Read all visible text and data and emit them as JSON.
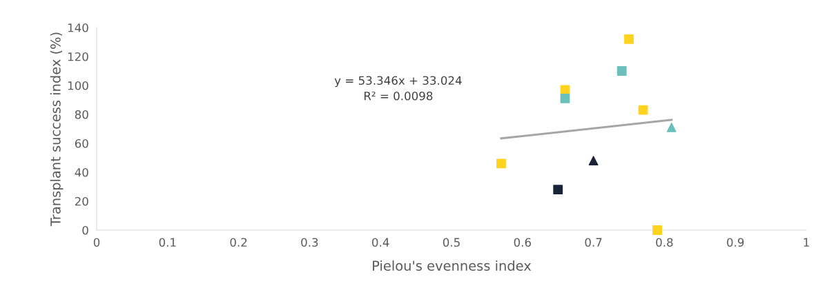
{
  "chart_data": {
    "type": "scatter",
    "xlabel": "Pielou's evenness index",
    "ylabel": "Transplant success index (%)",
    "xlim": [
      0,
      1
    ],
    "xticks": [
      0,
      {
        "value": 0.1,
        "label": "0.1"
      },
      {
        "value": 0.2,
        "label": "0.2"
      },
      {
        "value": 0.3,
        "label": "0.3"
      },
      {
        "value": 0.4,
        "label": "0.4"
      },
      {
        "value": 0.5,
        "label": "0.5"
      },
      {
        "value": 0.6,
        "label": "0.6"
      },
      {
        "value": 0.7,
        "label": "0.7"
      },
      {
        "value": 0.8,
        "label": "0.8"
      },
      {
        "value": 0.9,
        "label": "0.9"
      },
      1
    ],
    "ylim": [
      0,
      140
    ],
    "yticks": [
      0,
      20,
      40,
      60,
      80,
      100,
      120,
      140
    ],
    "grid": false,
    "legend": false,
    "series": [
      {
        "color": "#ffd320",
        "marker": "square",
        "x": [
          0.57,
          0.66,
          0.75,
          0.77,
          0.79
        ],
        "values": [
          46,
          97,
          132,
          83,
          0
        ]
      },
      {
        "color": "#6dbfbb",
        "marker": "square",
        "x": [
          0.66,
          0.74
        ],
        "values": [
          91,
          110
        ]
      },
      {
        "color": "#6dbfbb",
        "marker": "triangle",
        "x": [
          0.81
        ],
        "values": [
          71
        ]
      },
      {
        "color": "#1a2439",
        "marker": "triangle",
        "x": [
          0.7
        ],
        "values": [
          48
        ]
      },
      {
        "color": "#1a2439",
        "marker": "square",
        "x": [
          0.65
        ],
        "values": [
          28
        ]
      },
      {
        "type": "line",
        "color": "#a6a6a6",
        "marker": "none",
        "line_style": "solid",
        "x": [
          0.57,
          0.81
        ],
        "values": [
          63.4,
          76.2
        ]
      }
    ],
    "annotations": [
      "y = 53.346x + 33.024\nR² = 0.0098"
    ]
  }
}
